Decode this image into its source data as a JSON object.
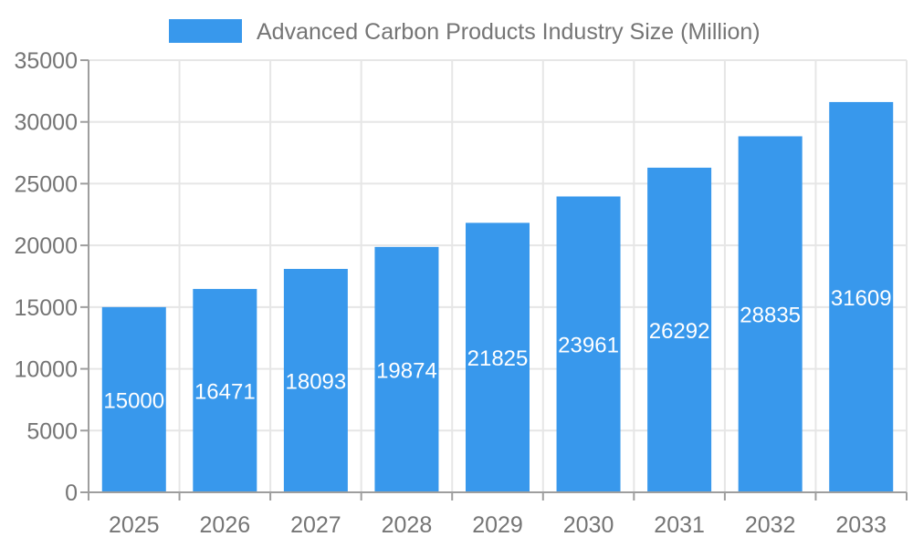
{
  "legend": {
    "label": "Advanced Carbon Products Industry Size (Million)"
  },
  "chart_data": {
    "type": "bar",
    "title": "Advanced Carbon Products Industry Size (Million)",
    "categories": [
      "2025",
      "2026",
      "2027",
      "2028",
      "2029",
      "2030",
      "2031",
      "2032",
      "2033"
    ],
    "values": [
      15000,
      16471,
      18093,
      19874,
      21825,
      23961,
      26292,
      28835,
      31609
    ],
    "xlabel": "",
    "ylabel": "",
    "ylim": [
      0,
      35000
    ],
    "ytick_step": 5000,
    "ytick_labels": [
      "0",
      "5000",
      "10000",
      "15000",
      "20000",
      "25000",
      "30000",
      "35000"
    ],
    "grid": true,
    "legend_position": "top",
    "bar_color": "#3898EC",
    "bar_label_color": "#FFFFFF",
    "axis_text_color": "#757575",
    "gridline_color": "#E6E6E6",
    "axis_line_color": "#9E9E9E",
    "background_color": "#FFFFFF"
  }
}
